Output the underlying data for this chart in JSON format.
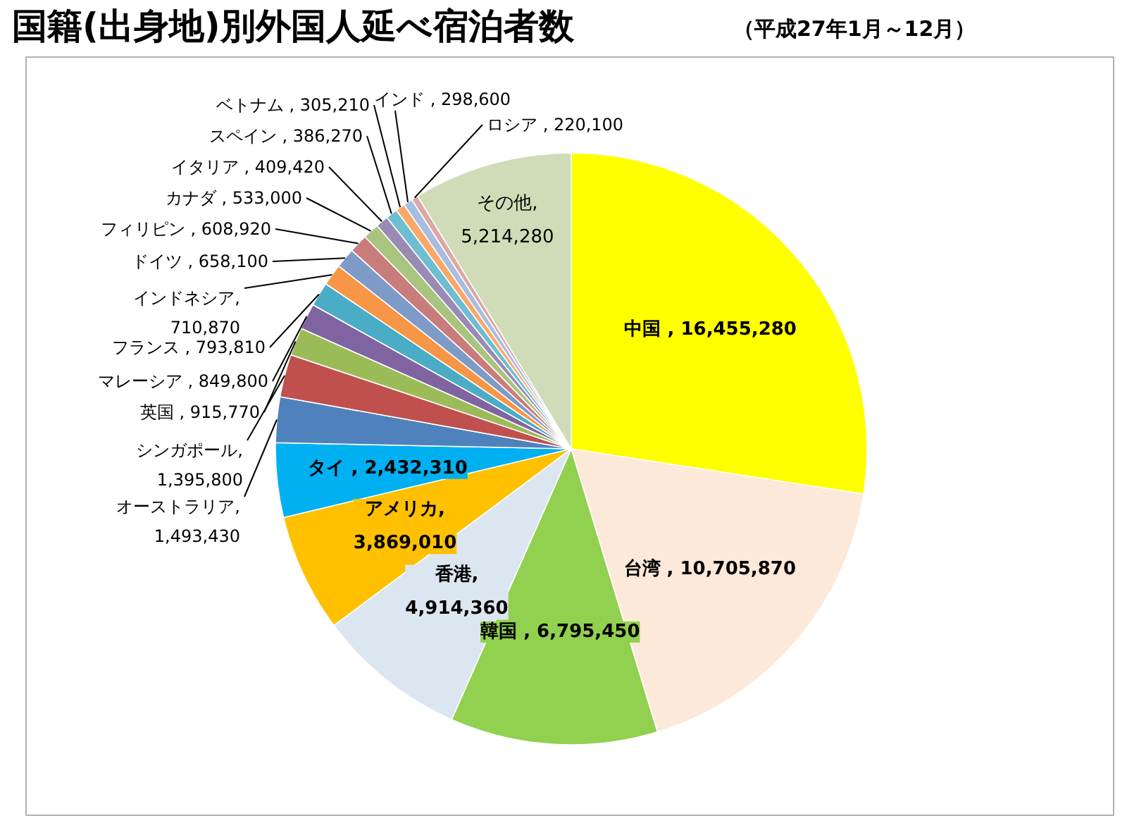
{
  "chart_data": {
    "type": "pie",
    "title": "国籍(出身地)別外国人延べ宿泊者数",
    "subtitle": "（平成27年1月～12月）",
    "categories": [
      "中国",
      "台湾",
      "韓国",
      "香港",
      "アメリカ",
      "タイ",
      "オーストラリア",
      "シンガポール",
      "英国",
      "マレーシア",
      "フランス",
      "インドネシア",
      "ドイツ",
      "フィリピン",
      "カナダ",
      "イタリア",
      "スペイン",
      "ベトナム",
      "インド",
      "ロシア",
      "その他"
    ],
    "values": [
      16455280,
      10705870,
      6795450,
      4914360,
      3869010,
      2432310,
      1493430,
      1395800,
      915770,
      849800,
      793810,
      710870,
      658100,
      608920,
      533000,
      409420,
      386270,
      305210,
      298600,
      220100,
      5214280
    ],
    "colors": [
      "#ffff00",
      "#fde9d9",
      "#92d050",
      "#dce6f1",
      "#ffc000",
      "#00b0f0",
      "#4f81bd",
      "#c0504d",
      "#9bbb59",
      "#8064a2",
      "#4bacc6",
      "#f79646",
      "#7e9bc8",
      "#c87c7b",
      "#a9c47f",
      "#9a8bb5",
      "#6fbdd1",
      "#f9a86a",
      "#a8bde0",
      "#dca7a7",
      "#d0dcb8"
    ],
    "value_labels": [
      ", 16,455,280",
      ", 10,705,870",
      ", 6,795,450",
      ", 4,914,360",
      ", 3,869,010",
      ", 2,432,310",
      ", 1,493,430",
      ", 1,395,800",
      ", 915,770",
      ", 849,800",
      ", 793,810",
      ", 710,870",
      ", 658,100",
      ", 608,920",
      ", 533,000",
      ", 409,420",
      ", 386,270",
      ", 305,210",
      ", 298,600",
      ", 220,100",
      ", 5,214,280"
    ]
  }
}
